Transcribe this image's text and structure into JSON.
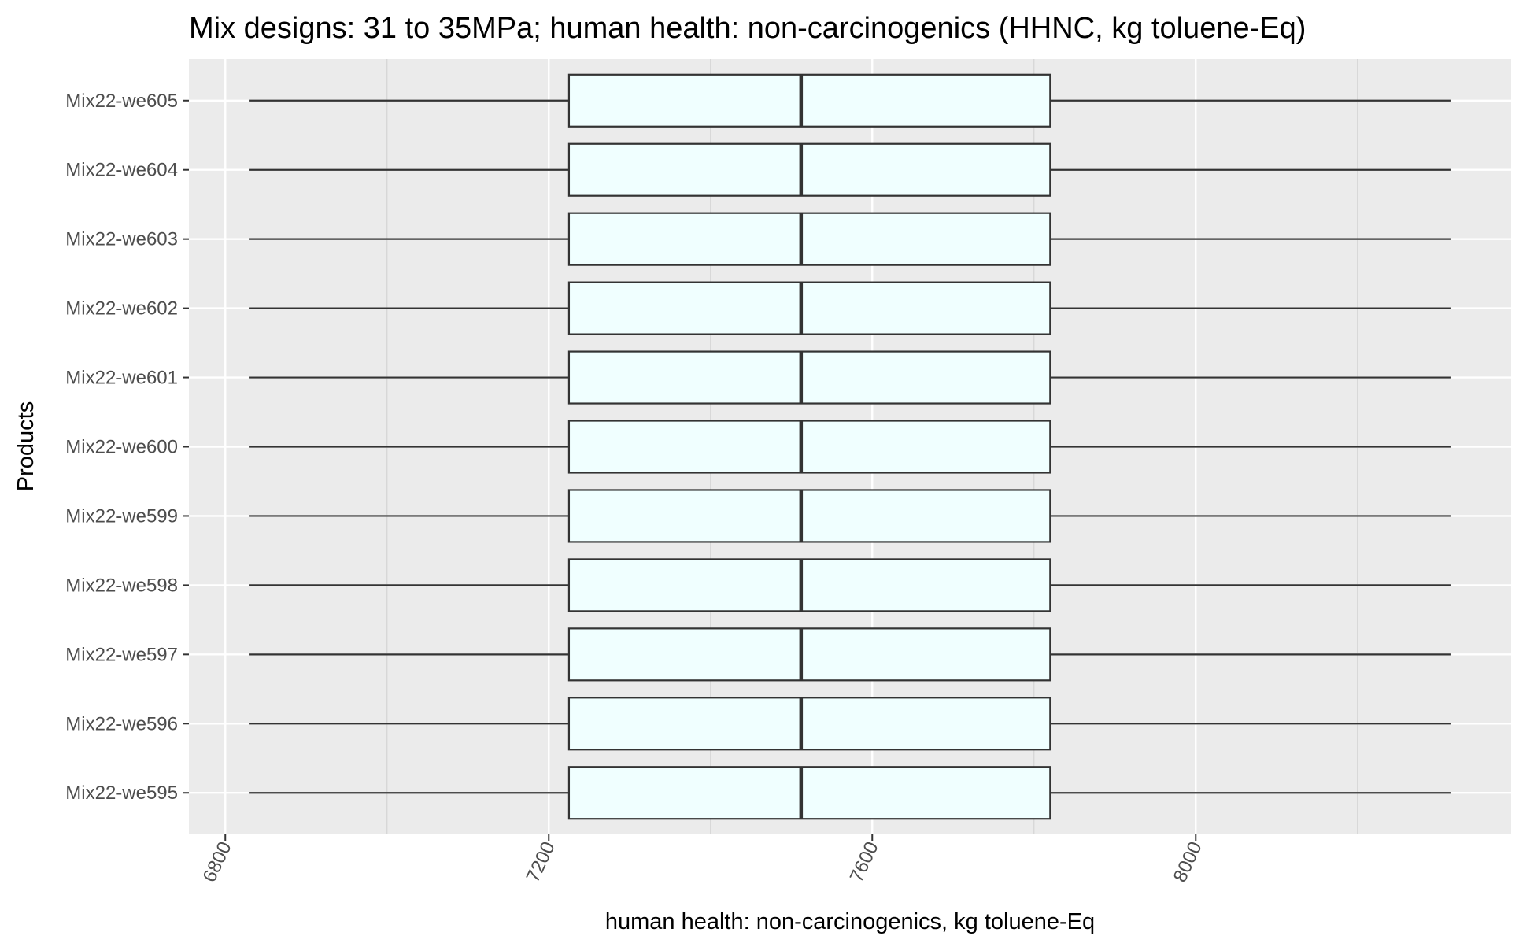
{
  "chart_data": {
    "type": "boxplot",
    "orientation": "horizontal",
    "title": "Mix designs: 31 to 35MPa; human health: non-carcinogenics (HHNC, kg toluene-Eq)",
    "xlabel": "human health: non-carcinogenics, kg toluene-Eq",
    "ylabel": "Products",
    "xlim": [
      6755,
      8390
    ],
    "x_ticks": [
      6800,
      7200,
      7600,
      8000
    ],
    "x_tick_labels": [
      "6800",
      "7200",
      "7600",
      "8000"
    ],
    "grid": true,
    "categories": [
      "Mix22-we595",
      "Mix22-we596",
      "Mix22-we597",
      "Mix22-we598",
      "Mix22-we599",
      "Mix22-we600",
      "Mix22-we601",
      "Mix22-we602",
      "Mix22-we603",
      "Mix22-we604",
      "Mix22-we605"
    ],
    "boxes": [
      {
        "category": "Mix22-we595",
        "min": 6830,
        "q1": 7225,
        "median": 7512,
        "q3": 7820,
        "max": 8315
      },
      {
        "category": "Mix22-we596",
        "min": 6830,
        "q1": 7225,
        "median": 7512,
        "q3": 7820,
        "max": 8315
      },
      {
        "category": "Mix22-we597",
        "min": 6830,
        "q1": 7225,
        "median": 7512,
        "q3": 7820,
        "max": 8315
      },
      {
        "category": "Mix22-we598",
        "min": 6830,
        "q1": 7225,
        "median": 7512,
        "q3": 7820,
        "max": 8315
      },
      {
        "category": "Mix22-we599",
        "min": 6830,
        "q1": 7225,
        "median": 7512,
        "q3": 7820,
        "max": 8315
      },
      {
        "category": "Mix22-we600",
        "min": 6830,
        "q1": 7225,
        "median": 7512,
        "q3": 7820,
        "max": 8315
      },
      {
        "category": "Mix22-we601",
        "min": 6830,
        "q1": 7225,
        "median": 7512,
        "q3": 7820,
        "max": 8315
      },
      {
        "category": "Mix22-we602",
        "min": 6830,
        "q1": 7225,
        "median": 7512,
        "q3": 7820,
        "max": 8315
      },
      {
        "category": "Mix22-we603",
        "min": 6830,
        "q1": 7225,
        "median": 7512,
        "q3": 7820,
        "max": 8315
      },
      {
        "category": "Mix22-we604",
        "min": 6830,
        "q1": 7225,
        "median": 7512,
        "q3": 7820,
        "max": 8315
      },
      {
        "category": "Mix22-we605",
        "min": 6830,
        "q1": 7225,
        "median": 7512,
        "q3": 7820,
        "max": 8315
      }
    ],
    "colors": {
      "panel_background": "#ebebeb",
      "grid_major": "#ffffff",
      "grid_minor": "#d4d4d4",
      "box_fill": "#f0ffff",
      "box_stroke": "#333333",
      "tick_text": "#4d4d4d"
    }
  }
}
